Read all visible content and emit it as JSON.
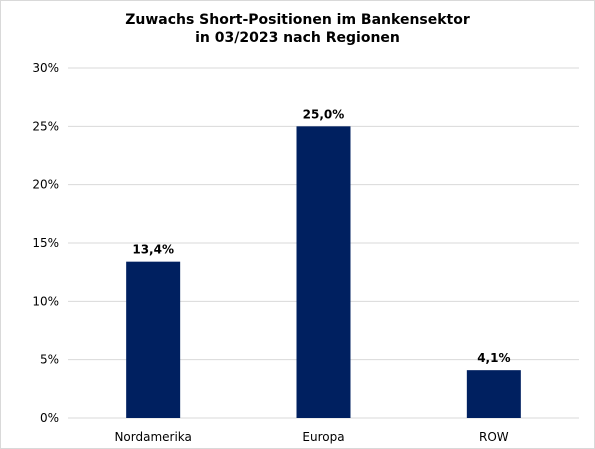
{
  "chart_data": {
    "type": "bar",
    "title_line1": "Zuwachs Short-Positionen im Bankensektor",
    "title_line2": "in 03/2023 nach Regionen",
    "categories": [
      "Nordamerika",
      "Europa",
      "ROW"
    ],
    "values": [
      13.4,
      25.0,
      4.1
    ],
    "data_labels": [
      "13,4%",
      "25,0%",
      "4,1%"
    ],
    "ylim": [
      0,
      30
    ],
    "yticks": [
      0,
      5,
      10,
      15,
      20,
      25,
      30
    ],
    "ytick_labels": [
      "0%",
      "5%",
      "10%",
      "15%",
      "20%",
      "25%",
      "30%"
    ],
    "bar_color": "#002060",
    "grid": true,
    "legend": false
  }
}
